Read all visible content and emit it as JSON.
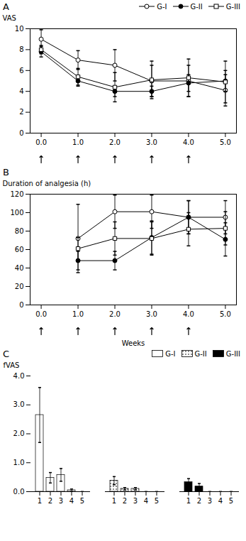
{
  "chart_data": [
    {
      "type": "line",
      "title": "A",
      "ylabel": "VAS",
      "xlim": [
        -0.3,
        5.3
      ],
      "xticks": [
        0,
        1,
        2,
        3,
        4,
        5
      ],
      "ylim": [
        0,
        10
      ],
      "yticks": [
        0,
        2,
        4,
        6,
        8,
        10
      ],
      "grid": false,
      "legend": "upper right",
      "series": [
        {
          "name": "G-I",
          "color": "black",
          "marker": "open_circle",
          "x": [
            0,
            1,
            2,
            3,
            4,
            5
          ],
          "values": [
            9.0,
            7.0,
            6.5,
            5.0,
            5.0,
            4.1
          ],
          "error": [
            0.9,
            0.9,
            1.5,
            1.5,
            1.5,
            1.5
          ]
        },
        {
          "name": "G-II",
          "color": "black",
          "marker": "circle",
          "x": [
            0,
            1,
            2,
            3,
            4,
            5
          ],
          "values": [
            7.8,
            5.0,
            4.0,
            4.0,
            4.8,
            5.0
          ],
          "error": [
            0.5,
            0.5,
            0.5,
            0.5,
            0.8,
            1.0
          ]
        },
        {
          "name": "G-III",
          "color": "black",
          "marker": "open_square",
          "x": [
            0,
            1,
            2,
            3,
            4,
            5
          ],
          "values": [
            8.0,
            5.4,
            4.4,
            5.1,
            5.3,
            4.9
          ],
          "error": [
            0.4,
            0.8,
            1.4,
            1.8,
            1.8,
            2.0
          ]
        }
      ],
      "arrow_x": [
        0,
        1,
        2,
        3,
        4
      ]
    },
    {
      "type": "line",
      "title": "B",
      "ylabel": "Duration of analgesia (h)",
      "xlabel": "Weeks",
      "xlim": [
        -0.3,
        5.3
      ],
      "xticks": [
        0,
        1,
        2,
        3,
        4,
        5
      ],
      "ylim": [
        0,
        120
      ],
      "yticks": [
        0,
        20,
        40,
        60,
        80,
        100,
        120
      ],
      "grid": false,
      "series": [
        {
          "name": "G-I",
          "color": "black",
          "marker": "open_circle",
          "x": [
            1,
            2,
            3,
            4,
            5
          ],
          "values": [
            72.0,
            101.0,
            101.0,
            95.0,
            95.0
          ],
          "error": [
            37.0,
            18.0,
            18.0,
            18.0,
            18.0
          ]
        },
        {
          "name": "G-II",
          "color": "black",
          "marker": "circle",
          "x": [
            1,
            2,
            3,
            4,
            5
          ],
          "values": [
            48.0,
            48.0,
            73.0,
            95.0,
            71.0
          ],
          "error": [
            10.0,
            10.0,
            18.0,
            18.0,
            18.0
          ]
        },
        {
          "name": "G-III",
          "color": "black",
          "marker": "open_square",
          "x": [
            1,
            2,
            3,
            4,
            5
          ],
          "values": [
            61.0,
            72.0,
            72.0,
            82.0,
            83.0
          ],
          "error": [
            12.0,
            18.0,
            18.0,
            18.0,
            18.0
          ]
        }
      ],
      "arrow_x": [
        0,
        1,
        2,
        3,
        4
      ]
    },
    {
      "type": "bar",
      "title": "C",
      "ylabel": "fVAS",
      "categories": [
        "1",
        "2",
        "3",
        "4",
        "5"
      ],
      "ylim": [
        0,
        4.0
      ],
      "yticks": [
        0,
        1,
        2,
        3,
        4
      ],
      "grid": false,
      "legend": "upper right",
      "series": [
        {
          "name": "G-I",
          "color": "white",
          "values": [
            2.65,
            0.48,
            0.58,
            0.05,
            0.0
          ],
          "error": [
            0.95,
            0.18,
            0.22,
            0.04,
            0.0
          ]
        },
        {
          "name": "G-II",
          "color": "white",
          "marker": "dots",
          "values": [
            0.38,
            0.1,
            0.1,
            0.0,
            0.0
          ],
          "error": [
            0.14,
            0.04,
            0.04,
            0.0,
            0.0
          ]
        },
        {
          "name": "G-III",
          "color": "black",
          "values": [
            0.33,
            0.18,
            0.0,
            0.0,
            0.0
          ],
          "error": [
            0.12,
            0.1,
            0.0,
            0.0,
            0.0
          ]
        }
      ]
    }
  ]
}
